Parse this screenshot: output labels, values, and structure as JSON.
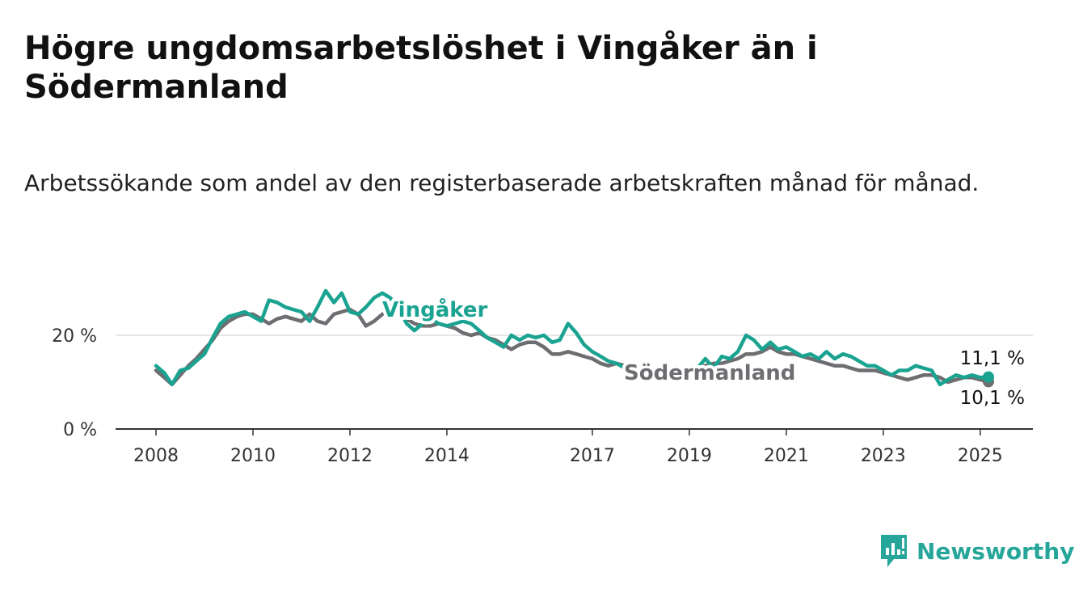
{
  "title": "Högre ungdomsarbetslöshet i Vingåker än i Södermanland",
  "subtitle": "Arbetssökande som andel av den registerbaserade arbetskraften månad för månad.",
  "brand": {
    "name": "Newsworthy",
    "icon": "bar-chart-speech-bubble-icon",
    "color": "#26a69a"
  },
  "colors": {
    "vingaker": "#1aa391",
    "sodermanland": "#6d6e71",
    "grid": "#dddddd",
    "axis": "#333333"
  },
  "end_labels": {
    "vingaker": "11,1 %",
    "sodermanland": "10,1 %"
  },
  "chart_data": {
    "type": "line",
    "title": "Högre ungdomsarbetslöshet i Vingåker än i Södermanland",
    "xlabel": "",
    "ylabel": "",
    "xlim": [
      2008.0,
      2025.25
    ],
    "ylim": [
      0,
      30
    ],
    "x_ticks": [
      2008,
      2010,
      2012,
      2014,
      2017,
      2019,
      2021,
      2023,
      2025
    ],
    "x_tick_labels": [
      "2008",
      "2010",
      "2012",
      "2014",
      "2017",
      "2019",
      "2021",
      "2023",
      "2025"
    ],
    "y_ticks": [
      0,
      20
    ],
    "y_tick_labels": [
      "0 %",
      "20 %"
    ],
    "grid": "horizontal",
    "legend": "inline labels",
    "series": [
      {
        "name": "Södermanland",
        "color": "#6d6e71",
        "x": [
          2008.0,
          2008.17,
          2008.33,
          2008.5,
          2008.67,
          2008.83,
          2009.0,
          2009.17,
          2009.33,
          2009.5,
          2009.67,
          2009.83,
          2010.0,
          2010.17,
          2010.33,
          2010.5,
          2010.67,
          2010.83,
          2011.0,
          2011.17,
          2011.33,
          2011.5,
          2011.67,
          2011.83,
          2012.0,
          2012.17,
          2012.33,
          2012.5,
          2012.67,
          2012.83,
          2013.0,
          2013.17,
          2013.33,
          2013.5,
          2013.67,
          2013.83,
          2014.0,
          2014.17,
          2014.33,
          2014.5,
          2014.67,
          2014.83,
          2015.0,
          2015.17,
          2015.33,
          2015.5,
          2015.67,
          2015.83,
          2016.0,
          2016.17,
          2016.33,
          2016.5,
          2016.67,
          2016.83,
          2017.0,
          2017.17,
          2017.33,
          2017.5,
          2017.67,
          2017.83,
          2018.0,
          2018.17,
          2018.33,
          2018.5,
          2018.67,
          2018.83,
          2019.0,
          2019.17,
          2019.33,
          2019.5,
          2019.67,
          2019.83,
          2020.0,
          2020.17,
          2020.33,
          2020.5,
          2020.67,
          2020.83,
          2021.0,
          2021.17,
          2021.33,
          2021.5,
          2021.67,
          2021.83,
          2022.0,
          2022.17,
          2022.33,
          2022.5,
          2022.67,
          2022.83,
          2023.0,
          2023.17,
          2023.33,
          2023.5,
          2023.67,
          2023.83,
          2024.0,
          2024.17,
          2024.33,
          2024.5,
          2024.67,
          2024.83,
          2025.0,
          2025.17
        ],
        "y": [
          12.5,
          11.0,
          9.5,
          11.5,
          13.5,
          15.0,
          17.0,
          19.0,
          21.5,
          23.0,
          24.0,
          24.5,
          24.5,
          23.5,
          22.5,
          23.5,
          24.0,
          23.5,
          23.0,
          24.5,
          23.0,
          22.5,
          24.5,
          25.0,
          25.5,
          24.5,
          22.0,
          23.0,
          24.5,
          25.0,
          24.5,
          23.5,
          22.5,
          22.0,
          22.0,
          22.5,
          22.0,
          21.5,
          20.5,
          20.0,
          20.5,
          19.5,
          19.0,
          18.0,
          17.0,
          18.0,
          18.5,
          18.5,
          17.5,
          16.0,
          16.0,
          16.5,
          16.0,
          15.5,
          15.0,
          14.0,
          13.5,
          14.0,
          13.5,
          13.0,
          12.5,
          12.5,
          12.5,
          12.0,
          12.0,
          12.0,
          12.5,
          13.0,
          13.5,
          14.0,
          14.0,
          14.5,
          15.0,
          16.0,
          16.0,
          16.5,
          17.5,
          16.5,
          16.0,
          16.0,
          15.5,
          15.0,
          14.5,
          14.0,
          13.5,
          13.5,
          13.0,
          12.5,
          12.5,
          12.5,
          12.0,
          11.5,
          11.0,
          10.5,
          11.0,
          11.5,
          11.5,
          11.0,
          10.0,
          10.5,
          11.0,
          11.0,
          10.5,
          10.1
        ]
      },
      {
        "name": "Vingåker",
        "color": "#1aa391",
        "x": [
          2008.0,
          2008.17,
          2008.33,
          2008.5,
          2008.67,
          2008.83,
          2009.0,
          2009.17,
          2009.33,
          2009.5,
          2009.67,
          2009.83,
          2010.0,
          2010.17,
          2010.33,
          2010.5,
          2010.67,
          2010.83,
          2011.0,
          2011.17,
          2011.33,
          2011.5,
          2011.67,
          2011.83,
          2012.0,
          2012.17,
          2012.33,
          2012.5,
          2012.67,
          2012.83,
          2013.0,
          2013.17,
          2013.33,
          2013.5,
          2013.67,
          2013.83,
          2014.0,
          2014.17,
          2014.33,
          2014.5,
          2014.67,
          2014.83,
          2015.0,
          2015.17,
          2015.33,
          2015.5,
          2015.67,
          2015.83,
          2016.0,
          2016.17,
          2016.33,
          2016.5,
          2016.67,
          2016.83,
          2017.0,
          2017.17,
          2017.33,
          2017.5,
          2017.67,
          2017.83,
          2018.0,
          2018.17,
          2018.33,
          2018.5,
          2018.67,
          2018.83,
          2019.0,
          2019.17,
          2019.33,
          2019.5,
          2019.67,
          2019.83,
          2020.0,
          2020.17,
          2020.33,
          2020.5,
          2020.67,
          2020.83,
          2021.0,
          2021.17,
          2021.33,
          2021.5,
          2021.67,
          2021.83,
          2022.0,
          2022.17,
          2022.33,
          2022.5,
          2022.67,
          2022.83,
          2023.0,
          2023.17,
          2023.33,
          2023.5,
          2023.67,
          2023.83,
          2024.0,
          2024.17,
          2024.33,
          2024.5,
          2024.67,
          2024.83,
          2025.0,
          2025.17
        ],
        "y": [
          13.5,
          12.0,
          9.5,
          12.5,
          13.0,
          14.5,
          16.0,
          19.5,
          22.5,
          24.0,
          24.5,
          25.0,
          24.0,
          23.0,
          27.5,
          27.0,
          26.0,
          25.5,
          25.0,
          23.0,
          26.0,
          29.5,
          27.0,
          29.0,
          25.0,
          24.5,
          26.0,
          28.0,
          29.0,
          28.0,
          26.0,
          22.5,
          21.0,
          22.5,
          23.5,
          22.5,
          22.0,
          22.5,
          23.0,
          22.5,
          21.0,
          19.5,
          18.5,
          17.5,
          20.0,
          19.0,
          20.0,
          19.5,
          20.0,
          18.5,
          19.0,
          22.5,
          20.5,
          18.0,
          16.5,
          15.5,
          14.5,
          14.0,
          13.0,
          13.0,
          12.5,
          12.5,
          12.5,
          12.0,
          12.0,
          12.0,
          12.5,
          13.0,
          15.0,
          13.0,
          15.5,
          15.0,
          16.5,
          20.0,
          19.0,
          17.0,
          18.5,
          17.0,
          17.5,
          16.5,
          15.5,
          16.0,
          15.0,
          16.5,
          15.0,
          16.0,
          15.5,
          14.5,
          13.5,
          13.5,
          12.5,
          11.5,
          12.5,
          12.5,
          13.5,
          13.0,
          12.5,
          9.5,
          10.5,
          11.5,
          11.0,
          11.5,
          11.0,
          11.1
        ]
      }
    ]
  }
}
